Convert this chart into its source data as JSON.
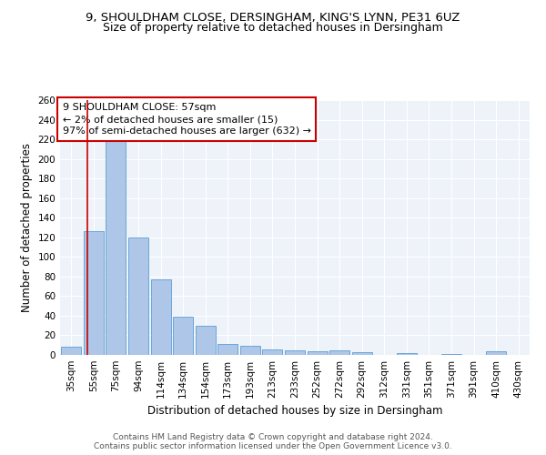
{
  "title1": "9, SHOULDHAM CLOSE, DERSINGHAM, KING'S LYNN, PE31 6UZ",
  "title2": "Size of property relative to detached houses in Dersingham",
  "xlabel": "Distribution of detached houses by size in Dersingham",
  "ylabel": "Number of detached properties",
  "footer1": "Contains HM Land Registry data © Crown copyright and database right 2024.",
  "footer2": "Contains public sector information licensed under the Open Government Licence v3.0.",
  "annotation_line1": "9 SHOULDHAM CLOSE: 57sqm",
  "annotation_line2": "← 2% of detached houses are smaller (15)",
  "annotation_line3": "97% of semi-detached houses are larger (632) →",
  "bar_categories": [
    "35sqm",
    "55sqm",
    "75sqm",
    "94sqm",
    "114sqm",
    "134sqm",
    "154sqm",
    "173sqm",
    "193sqm",
    "213sqm",
    "233sqm",
    "252sqm",
    "272sqm",
    "292sqm",
    "312sqm",
    "331sqm",
    "351sqm",
    "371sqm",
    "391sqm",
    "410sqm",
    "430sqm"
  ],
  "bar_values": [
    8,
    126,
    218,
    120,
    77,
    39,
    30,
    11,
    9,
    6,
    5,
    4,
    5,
    3,
    0,
    2,
    0,
    1,
    0,
    4,
    0
  ],
  "bar_color": "#aec6e8",
  "bar_edge_color": "#5a9fd4",
  "vline_color": "#cc0000",
  "vline_x": 0.72,
  "annotation_box_color": "#cc0000",
  "ylim": [
    0,
    260
  ],
  "yticks": [
    0,
    20,
    40,
    60,
    80,
    100,
    120,
    140,
    160,
    180,
    200,
    220,
    240,
    260
  ],
  "bg_color": "#eef2f9",
  "grid_color": "#ffffff",
  "title_fontsize": 9.5,
  "subtitle_fontsize": 9,
  "axis_fontsize": 8.5,
  "tick_fontsize": 7.5,
  "ann_fontsize": 8,
  "footer_fontsize": 6.5
}
